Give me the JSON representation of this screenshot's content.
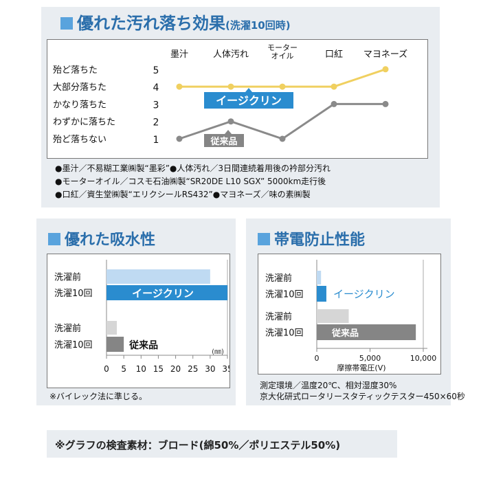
{
  "colors": {
    "accent_blue": "#2a8ccf",
    "light_blue": "#bfdaf2",
    "gray_dark": "#858585",
    "gray_light": "#d6d6d6",
    "line_yellow": "#f0d060",
    "line_gray": "#8a8a8a",
    "heading_blue": "#2a6eab"
  },
  "stain": {
    "title": "優れた汚れ落ち効果",
    "subtitle": "(洗濯10回時)",
    "notes": [
      "●墨汁／不易糊工業㈱製“墨彩”●人体汚れ／3日間連続着用後の衿部分汚れ",
      "●モーターオイル／コスモ石油㈱製“SR20DE L10 SGX” 5000km走行後",
      "●口紅／資生堂㈱製“エリクシールRS432”●マヨネーズ／味の素㈱製"
    ]
  },
  "absorb": {
    "title": "優れた吸水性",
    "note": "※バイレック法に準じる。"
  },
  "antistatic": {
    "title": "帯電防止性能",
    "notes": [
      "測定環境／温度20℃、相対湿度30%",
      "京大化研式ロータリースタティックテスター450×60秒"
    ]
  },
  "footer": "※グラフの検査素材：ブロード(綿50%／ポリエステル50%)",
  "chart_data": [
    {
      "type": "line",
      "categories": [
        "墨汁",
        "人体汚れ",
        "モーター\nオイル",
        "口紅",
        "マヨネーズ"
      ],
      "y_levels": [
        {
          "value": 5,
          "label": "殆ど落ちた"
        },
        {
          "value": 4,
          "label": "大部分落ちた"
        },
        {
          "value": 3,
          "label": "かなり落ちた"
        },
        {
          "value": 2,
          "label": "わずかに落ちた"
        },
        {
          "value": 1,
          "label": "殆ど落ちない"
        }
      ],
      "ylim": [
        1,
        5
      ],
      "series": [
        {
          "name": "イージクリン",
          "values": [
            4,
            4,
            4,
            4,
            5
          ],
          "color": "#f0d060"
        },
        {
          "name": "従来品",
          "values": [
            1,
            2,
            1,
            3,
            3
          ],
          "color": "#8a8a8a"
        }
      ]
    },
    {
      "type": "bar",
      "orientation": "horizontal",
      "unit": "(㎜)",
      "xlim": [
        0,
        35
      ],
      "xticks": [
        0,
        5,
        10,
        15,
        20,
        25,
        30,
        35
      ],
      "categories": [
        "洗濯前",
        "洗濯10回"
      ],
      "series": [
        {
          "name": "イージクリン",
          "values": [
            30,
            35
          ]
        },
        {
          "name": "従来品",
          "values": [
            3,
            5
          ]
        }
      ]
    },
    {
      "type": "bar",
      "orientation": "horizontal",
      "xlabel": "摩擦帯電圧(V)",
      "xlim": [
        0,
        10000
      ],
      "xticks": [
        0,
        5000,
        10000
      ],
      "xtick_labels": [
        "0",
        "5,000",
        "10,000"
      ],
      "categories": [
        "洗濯前",
        "洗濯10回"
      ],
      "series": [
        {
          "name": "イージクリン",
          "values": [
            400,
            900
          ]
        },
        {
          "name": "従来品",
          "values": [
            3000,
            9300
          ]
        }
      ]
    }
  ]
}
